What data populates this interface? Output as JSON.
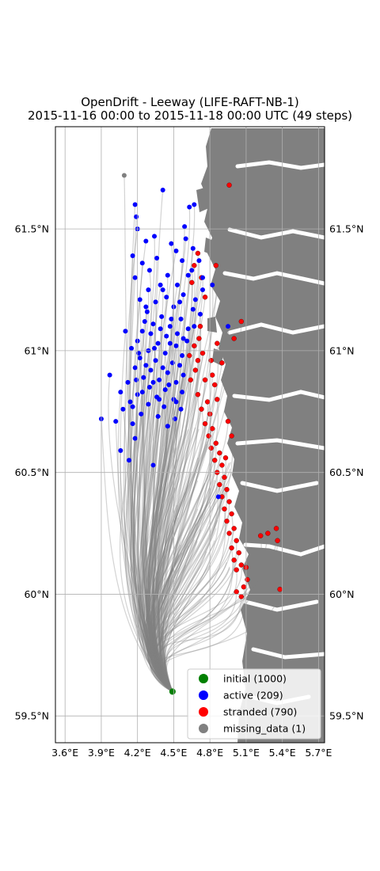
{
  "chart_data": {
    "type": "scatter",
    "title": "OpenDrift - Leeway (LIFE-RAFT-NB-1)",
    "subtitle": "2015-11-16 00:00 to 2015-11-18 00:00 UTC (49 steps)",
    "xlabel": "",
    "ylabel": "",
    "xlim": [
      3.52,
      5.75
    ],
    "ylim": [
      59.39,
      61.92
    ],
    "x_ticks": [
      3.6,
      3.9,
      4.2,
      4.5,
      4.8,
      5.1,
      5.4,
      5.7
    ],
    "x_tick_labels": [
      "3.6°E",
      "3.9°E",
      "4.2°E",
      "4.5°E",
      "4.8°E",
      "5.1°E",
      "5.4°E",
      "5.7°E"
    ],
    "y_ticks": [
      59.5,
      60.0,
      60.5,
      61.0,
      61.5
    ],
    "y_tick_labels": [
      "59.5°N",
      "60°N",
      "60.5°N",
      "61°N",
      "61.5°N"
    ],
    "grid": true,
    "legend_position": "bottom-right",
    "series": [
      {
        "name": "initial (1000)",
        "color": "#008000",
        "points": [
          [
            4.49,
            59.6
          ]
        ]
      },
      {
        "name": "active (209)",
        "color": "#0000ff",
        "points": [
          [
            4.41,
            61.66
          ],
          [
            4.18,
            61.6
          ],
          [
            4.63,
            61.59
          ],
          [
            4.19,
            61.55
          ],
          [
            4.67,
            61.6
          ],
          [
            4.2,
            61.5
          ],
          [
            4.34,
            61.47
          ],
          [
            4.6,
            61.46
          ],
          [
            4.27,
            61.45
          ],
          [
            4.48,
            61.44
          ],
          [
            4.52,
            61.41
          ],
          [
            4.16,
            61.39
          ],
          [
            4.24,
            61.36
          ],
          [
            4.36,
            61.38
          ],
          [
            4.57,
            61.37
          ],
          [
            4.71,
            61.37
          ],
          [
            4.3,
            61.33
          ],
          [
            4.45,
            61.31
          ],
          [
            4.62,
            61.31
          ],
          [
            4.18,
            61.3
          ],
          [
            4.39,
            61.27
          ],
          [
            4.53,
            61.27
          ],
          [
            4.29,
            61.25
          ],
          [
            4.44,
            61.22
          ],
          [
            4.58,
            61.23
          ],
          [
            4.74,
            61.25
          ],
          [
            4.22,
            61.21
          ],
          [
            4.35,
            61.2
          ],
          [
            4.5,
            61.18
          ],
          [
            4.66,
            61.17
          ],
          [
            4.28,
            61.16
          ],
          [
            4.4,
            61.14
          ],
          [
            4.56,
            61.13
          ],
          [
            4.72,
            61.15
          ],
          [
            4.26,
            61.12
          ],
          [
            4.47,
            61.1
          ],
          [
            4.62,
            61.09
          ],
          [
            4.1,
            61.08
          ],
          [
            4.31,
            61.07
          ],
          [
            4.44,
            61.06
          ],
          [
            4.58,
            61.05
          ],
          [
            4.2,
            61.04
          ],
          [
            4.37,
            61.03
          ],
          [
            4.52,
            61.02
          ],
          [
            4.15,
            61.01
          ],
          [
            4.29,
            61.0
          ],
          [
            4.43,
            60.99
          ],
          [
            4.57,
            60.98
          ],
          [
            4.22,
            60.97
          ],
          [
            4.35,
            60.96
          ],
          [
            4.49,
            60.95
          ],
          [
            4.18,
            60.93
          ],
          [
            4.31,
            60.92
          ],
          [
            4.45,
            60.91
          ],
          [
            4.58,
            60.9
          ],
          [
            3.97,
            60.9
          ],
          [
            4.25,
            60.89
          ],
          [
            4.38,
            60.88
          ],
          [
            4.52,
            60.87
          ],
          [
            4.12,
            60.87
          ],
          [
            4.3,
            60.85
          ],
          [
            4.43,
            60.84
          ],
          [
            4.57,
            60.83
          ],
          [
            4.06,
            60.83
          ],
          [
            4.2,
            60.82
          ],
          [
            4.36,
            60.81
          ],
          [
            4.5,
            60.8
          ],
          [
            4.14,
            60.79
          ],
          [
            4.29,
            60.78
          ],
          [
            4.42,
            60.77
          ],
          [
            4.56,
            60.76
          ],
          [
            4.08,
            60.76
          ],
          [
            4.23,
            60.74
          ],
          [
            4.37,
            60.73
          ],
          [
            4.51,
            60.72
          ],
          [
            3.9,
            60.72
          ],
          [
            4.02,
            60.71
          ],
          [
            4.16,
            60.7
          ],
          [
            4.45,
            60.69
          ],
          [
            4.06,
            60.59
          ],
          [
            4.18,
            60.64
          ],
          [
            4.13,
            60.55
          ],
          [
            4.33,
            60.53
          ],
          [
            4.87,
            60.4
          ],
          [
            4.27,
            61.18
          ],
          [
            4.41,
            61.25
          ],
          [
            4.55,
            61.2
          ],
          [
            4.68,
            61.21
          ],
          [
            4.33,
            61.11
          ],
          [
            4.48,
            61.13
          ],
          [
            4.24,
            61.08
          ],
          [
            4.39,
            61.09
          ],
          [
            4.53,
            61.07
          ],
          [
            4.67,
            61.1
          ],
          [
            4.21,
            60.99
          ],
          [
            4.34,
            61.01
          ],
          [
            4.47,
            61.03
          ],
          [
            4.61,
            61.04
          ],
          [
            4.27,
            60.94
          ],
          [
            4.41,
            60.93
          ],
          [
            4.55,
            60.94
          ],
          [
            4.19,
            60.88
          ],
          [
            4.33,
            60.87
          ],
          [
            4.46,
            60.86
          ],
          [
            4.24,
            60.83
          ],
          [
            4.38,
            60.8
          ],
          [
            4.52,
            60.79
          ],
          [
            4.16,
            60.77
          ],
          [
            4.65,
            61.33
          ],
          [
            4.74,
            61.3
          ],
          [
            4.82,
            61.27
          ],
          [
            4.95,
            61.1
          ],
          [
            4.66,
            61.42
          ],
          [
            4.59,
            61.51
          ]
        ]
      },
      {
        "name": "stranded (790)",
        "color": "#ff0000",
        "points": [
          [
            4.96,
            61.68
          ],
          [
            4.7,
            61.4
          ],
          [
            4.85,
            61.35
          ],
          [
            4.67,
            61.35
          ],
          [
            4.73,
            61.3
          ],
          [
            4.65,
            61.28
          ],
          [
            4.76,
            61.22
          ],
          [
            4.71,
            61.05
          ],
          [
            4.67,
            61.02
          ],
          [
            4.74,
            60.99
          ],
          [
            4.63,
            60.98
          ],
          [
            4.7,
            60.96
          ],
          [
            4.81,
            60.96
          ],
          [
            4.86,
            61.03
          ],
          [
            5.0,
            61.05
          ],
          [
            5.06,
            61.12
          ],
          [
            4.82,
            60.9
          ],
          [
            4.76,
            60.88
          ],
          [
            4.84,
            60.86
          ],
          [
            4.7,
            60.82
          ],
          [
            4.78,
            60.79
          ],
          [
            4.86,
            60.8
          ],
          [
            4.73,
            60.76
          ],
          [
            4.8,
            60.74
          ],
          [
            4.76,
            60.7
          ],
          [
            4.82,
            60.68
          ],
          [
            4.79,
            60.65
          ],
          [
            4.85,
            60.62
          ],
          [
            4.81,
            60.6
          ],
          [
            4.88,
            60.58
          ],
          [
            4.84,
            60.55
          ],
          [
            4.9,
            60.53
          ],
          [
            4.86,
            60.5
          ],
          [
            4.92,
            60.48
          ],
          [
            4.88,
            60.45
          ],
          [
            4.94,
            60.43
          ],
          [
            4.9,
            60.4
          ],
          [
            4.96,
            60.38
          ],
          [
            4.92,
            60.35
          ],
          [
            4.98,
            60.33
          ],
          [
            4.94,
            60.3
          ],
          [
            5.0,
            60.27
          ],
          [
            4.96,
            60.25
          ],
          [
            5.02,
            60.22
          ],
          [
            4.98,
            60.19
          ],
          [
            5.04,
            60.17
          ],
          [
            5.0,
            60.14
          ],
          [
            5.06,
            60.12
          ],
          [
            5.02,
            60.1
          ],
          [
            5.1,
            60.11
          ],
          [
            5.22,
            60.24
          ],
          [
            5.28,
            60.25
          ],
          [
            5.35,
            60.27
          ],
          [
            5.36,
            60.22
          ],
          [
            5.38,
            60.02
          ],
          [
            5.08,
            60.03
          ],
          [
            5.02,
            60.01
          ],
          [
            5.06,
            59.99
          ],
          [
            5.11,
            60.06
          ],
          [
            4.98,
            60.65
          ],
          [
            4.93,
            60.56
          ],
          [
            4.95,
            60.71
          ],
          [
            4.68,
            60.92
          ],
          [
            4.64,
            60.88
          ],
          [
            4.72,
            61.1
          ],
          [
            4.9,
            60.95
          ]
        ]
      },
      {
        "name": "missing_data (1)",
        "color": "#808080",
        "points": [
          [
            4.09,
            61.72
          ]
        ]
      }
    ],
    "trajectory_color": "#808080",
    "land_color": "#808080",
    "water_color": "#ffffff"
  }
}
